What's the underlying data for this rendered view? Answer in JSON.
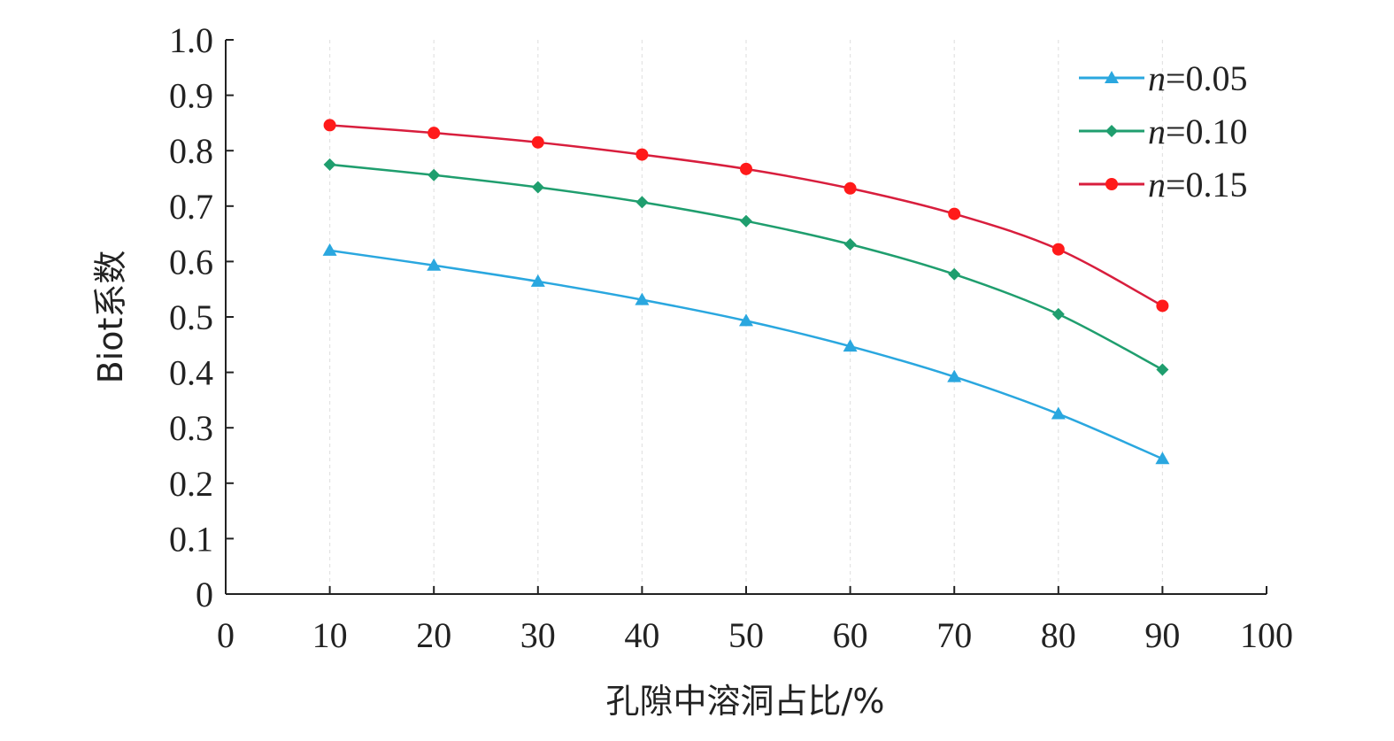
{
  "chart_data": {
    "type": "line",
    "title": "",
    "xlabel": "孔隙中溶洞占比/%",
    "ylabel": "Biot系数",
    "xlim": [
      0,
      100
    ],
    "ylim": [
      0,
      1.0
    ],
    "x_ticks": [
      0,
      10,
      20,
      30,
      40,
      50,
      60,
      70,
      80,
      90,
      100
    ],
    "x_tick_labels": [
      "0",
      "10",
      "20",
      "30",
      "40",
      "50",
      "60",
      "70",
      "80",
      "90",
      "100"
    ],
    "y_ticks": [
      0,
      0.1,
      0.2,
      0.3,
      0.4,
      0.5,
      0.6,
      0.7,
      0.8,
      0.9,
      1.0
    ],
    "y_tick_labels": [
      "0",
      "0.1",
      "0.2",
      "0.3",
      "0.4",
      "0.5",
      "0.6",
      "0.7",
      "0.8",
      "0.9",
      "1.0"
    ],
    "x": [
      10,
      20,
      30,
      40,
      50,
      60,
      70,
      80,
      90
    ],
    "grid": "vertical dashed",
    "legend_position": "top-right",
    "series": [
      {
        "name": "n=0.05",
        "label_var": "n",
        "label_value": "=0.05",
        "color": "#2aa7df",
        "marker": "triangle",
        "values": [
          0.62,
          0.593,
          0.564,
          0.531,
          0.493,
          0.447,
          0.392,
          0.325,
          0.244
        ]
      },
      {
        "name": "n=0.10",
        "label_var": "n",
        "label_value": "=0.10",
        "color": "#1f9e6e",
        "marker": "diamond",
        "values": [
          0.775,
          0.756,
          0.734,
          0.707,
          0.673,
          0.631,
          0.577,
          0.505,
          0.405
        ]
      },
      {
        "name": "n=0.15",
        "label_var": "n",
        "label_value": "=0.15",
        "color": "#d81e3d",
        "marker": "circle",
        "marker_color": "#ff1a1a",
        "values": [
          0.846,
          0.832,
          0.815,
          0.793,
          0.767,
          0.732,
          0.686,
          0.622,
          0.52
        ]
      }
    ]
  }
}
